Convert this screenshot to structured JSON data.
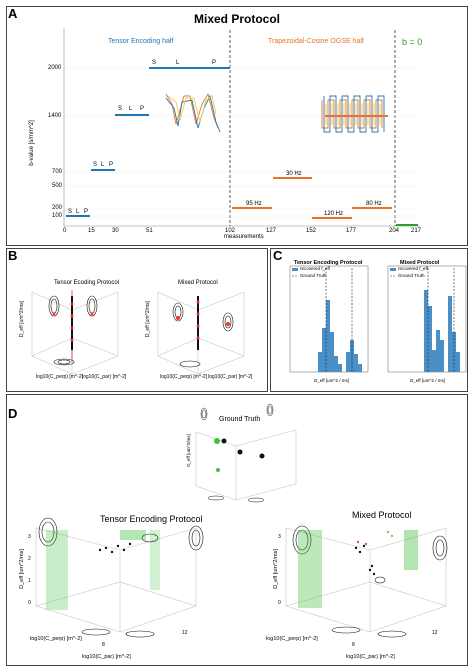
{
  "panels": {
    "a": {
      "letter": "A",
      "title": "Mixed Protocol",
      "left_half_label": "Tensor Encoding half",
      "right_half_label": "Trapezoidal-Cosine OGSE half",
      "b0_label": "b = 0",
      "ylabel": "b-value [s/mm^2]",
      "xlabel": "measurements",
      "y_ticks": [
        "2000",
        "1400",
        "700",
        "500",
        "200",
        "100"
      ],
      "x_ticks": [
        "0",
        "15",
        "30",
        "51",
        "102",
        "127",
        "152",
        "177",
        "204",
        "217"
      ],
      "slp_labels": [
        "S",
        "L",
        "P"
      ],
      "freq_labels": [
        "95 Hz",
        "30 Hz",
        "120 Hz",
        "80 Hz"
      ]
    },
    "b": {
      "letter": "B",
      "left_title": "Tensor Ecoding Protocol",
      "right_title": "Mixed Protocol",
      "zlabel": "D_eff [um^2/ms]",
      "xlabel": "log10(C_perp) [m^-2]",
      "ylabel": "log10(C_par) [m^-2]"
    },
    "c": {
      "letter": "C",
      "left_title": "Tensor Encoding Protocol",
      "right_title": "Mixed Protocol",
      "legend_recovered": "recovered f_eff",
      "legend_truth": "Ground Truth",
      "xlabel": "D_eff [um^2 / ms]"
    },
    "d": {
      "letter": "D",
      "top_title": "Ground Truth",
      "left_title": "Tensor Encoding Protocol",
      "right_title": "Mixed Protocol",
      "zlabel": "D_eff [um^2/ms]",
      "xlabel": "log10(C_perp) [m^-2]",
      "ylabel": "log10(C_par) [m^-2]",
      "ticks_x": [
        "8",
        "10",
        "12"
      ],
      "ticks_z": [
        "0",
        "0.5",
        "1",
        "1.5",
        "2",
        "2.5",
        "3"
      ]
    }
  },
  "colors": {
    "blue": "#1f77b4",
    "orange": "#e8742c",
    "green": "#2ca02c",
    "hist_blue": "#4a90c8",
    "scatter_green": "#3fbf3f"
  }
}
